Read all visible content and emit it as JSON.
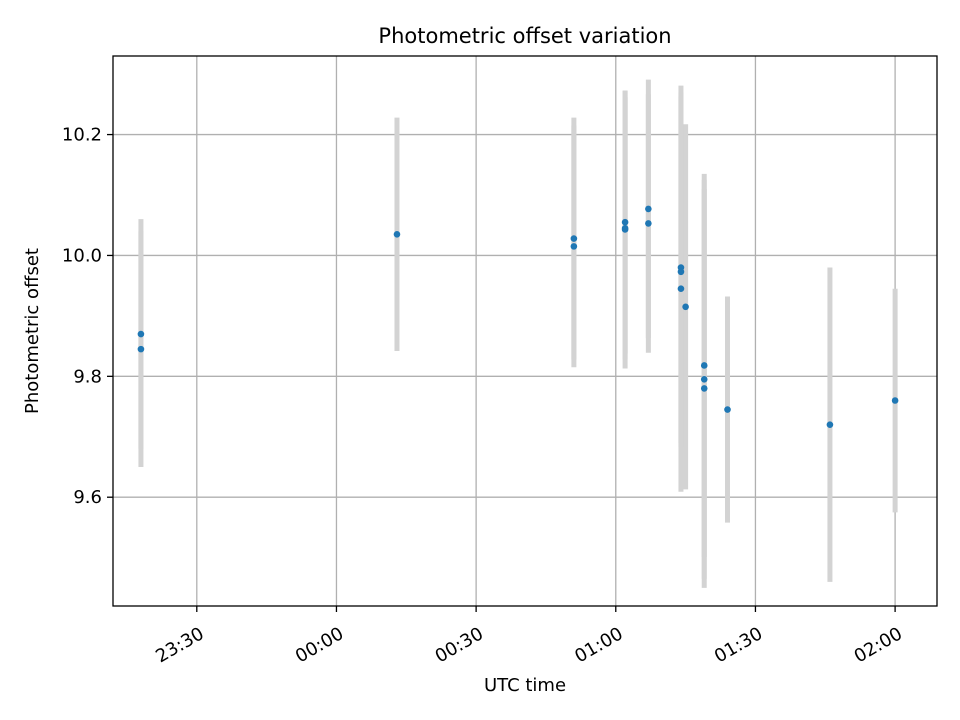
{
  "chart_data": {
    "type": "scatter",
    "title": "Photometric offset variation",
    "xlabel": "UTC time",
    "ylabel": "Photometric offset",
    "x_ticks": [
      "23:30",
      "00:00",
      "00:30",
      "01:00",
      "01:30",
      "02:00"
    ],
    "y_ticks": [
      "9.6",
      "9.8",
      "10.0",
      "10.2"
    ],
    "xlim": [
      "23:12",
      "02:09"
    ],
    "ylim": [
      9.42,
      10.33
    ],
    "grid": true,
    "colors": {
      "point": "#1f77b4",
      "errorbar": "#d3d3d3",
      "grid": "#b0b0b0"
    },
    "points": [
      {
        "x": "23:18",
        "y": 9.87,
        "yerr": 0.19
      },
      {
        "x": "23:18",
        "y": 9.845,
        "yerr": 0.195
      },
      {
        "x": "00:13",
        "y": 10.035,
        "yerr": 0.193
      },
      {
        "x": "00:51",
        "y": 10.015,
        "yerr": 0.2
      },
      {
        "x": "00:51",
        "y": 10.028,
        "yerr": 0.2
      },
      {
        "x": "01:02",
        "y": 10.055,
        "yerr": 0.217
      },
      {
        "x": "01:02",
        "y": 10.043,
        "yerr": 0.23
      },
      {
        "x": "01:02",
        "y": 10.045,
        "yerr": 0.217
      },
      {
        "x": "01:07",
        "y": 10.077,
        "yerr": 0.214
      },
      {
        "x": "01:07",
        "y": 10.053,
        "yerr": 0.214
      },
      {
        "x": "01:14",
        "y": 9.945,
        "yerr": 0.336
      },
      {
        "x": "01:14",
        "y": 9.98,
        "yerr": 0.29
      },
      {
        "x": "01:14",
        "y": 9.973,
        "yerr": 0.29
      },
      {
        "x": "01:15",
        "y": 9.915,
        "yerr": 0.302
      },
      {
        "x": "01:19",
        "y": 9.78,
        "yerr": 0.33
      },
      {
        "x": "01:19",
        "y": 9.795,
        "yerr": 0.33
      },
      {
        "x": "01:19",
        "y": 9.818,
        "yerr": 0.317
      },
      {
        "x": "01:24",
        "y": 9.745,
        "yerr": 0.187
      },
      {
        "x": "01:46",
        "y": 9.72,
        "yerr": 0.26
      },
      {
        "x": "02:00",
        "y": 9.76,
        "yerr": 0.185
      }
    ]
  }
}
